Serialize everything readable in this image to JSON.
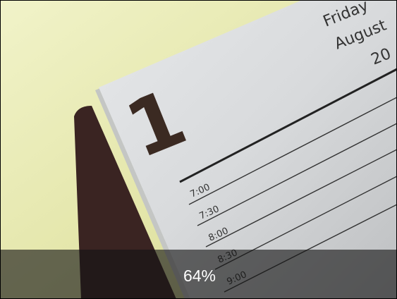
{
  "photo": {
    "weekday": "Friday",
    "month": "August",
    "year_fragment": "20",
    "day": "1",
    "times": [
      "7:00",
      "7:30",
      "8:00",
      "8:30",
      "9:00"
    ]
  },
  "overlay": {
    "label": "64%"
  }
}
